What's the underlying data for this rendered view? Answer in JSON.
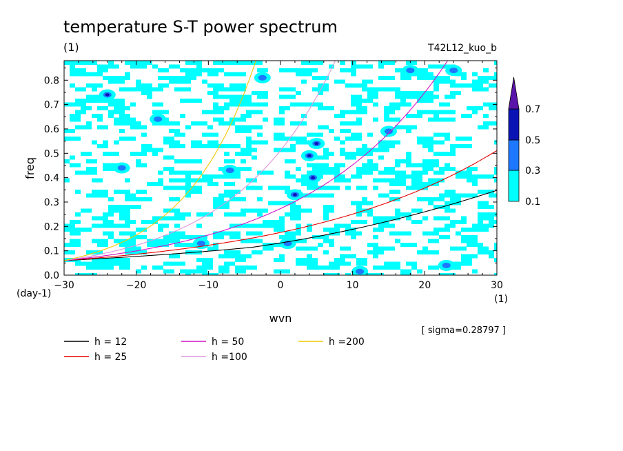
{
  "chart_data": {
    "type": "heatmap",
    "title": "temperature S-T power spectrum",
    "subtitle": "(1)",
    "run_label": "T42L12_kuo_b",
    "xlabel": "wvn",
    "x_unit": "(1)",
    "ylabel": "freq",
    "y_unit": "(day-1)",
    "xlim": [
      -30,
      30
    ],
    "ylim": [
      0,
      0.88
    ],
    "x_ticks": [
      -30,
      -20,
      -10,
      0,
      10,
      20,
      30
    ],
    "y_ticks": [
      0.0,
      0.1,
      0.2,
      0.3,
      0.4,
      0.5,
      0.6,
      0.7,
      0.8
    ],
    "x_tick_labels": [
      "−30",
      "−20",
      "−10",
      "0",
      "10",
      "20",
      "30"
    ],
    "y_tick_labels": [
      "0.0",
      "0.1",
      "0.2",
      "0.3",
      "0.4",
      "0.5",
      "0.6",
      "0.7",
      "0.8"
    ],
    "sigma_text": "[ sigma=0.28797 ]",
    "colorbar": {
      "levels": [
        "0.1",
        "0.3",
        "0.5",
        "0.7"
      ],
      "colors": [
        "#00ffff",
        "#1e78ff",
        "#0a14b4",
        "#5a14aa"
      ]
    },
    "dispersion_curves": [
      {
        "label": "h = 12",
        "h": 12,
        "color": "#000000"
      },
      {
        "label": "h = 25",
        "h": 25,
        "color": "#e60000"
      },
      {
        "label": "h = 50",
        "h": 50,
        "color": "#d214c8"
      },
      {
        "label": "h =100",
        "h": 100,
        "color": "#dc96dc"
      },
      {
        "label": "h =200",
        "h": 200,
        "color": "#f0c800"
      }
    ],
    "dark_spots": [
      {
        "x": -24,
        "y": 0.74,
        "level": 0.5
      },
      {
        "x": -17,
        "y": 0.64,
        "level": 0.3
      },
      {
        "x": -2.5,
        "y": 0.81,
        "level": 0.3
      },
      {
        "x": 2,
        "y": 0.33,
        "level": 0.5
      },
      {
        "x": 4,
        "y": 0.49,
        "level": 0.5
      },
      {
        "x": 4.5,
        "y": 0.4,
        "level": 0.5
      },
      {
        "x": 5,
        "y": 0.54,
        "level": 0.5
      },
      {
        "x": 18,
        "y": 0.84,
        "level": 0.3
      },
      {
        "x": 23,
        "y": 0.04,
        "level": 0.3
      },
      {
        "x": 11,
        "y": 0.015,
        "level": 0.3
      },
      {
        "x": -22,
        "y": 0.44,
        "level": 0.3
      },
      {
        "x": -7,
        "y": 0.43,
        "level": 0.3
      },
      {
        "x": -11,
        "y": 0.13,
        "level": 0.3
      },
      {
        "x": 15,
        "y": 0.59,
        "level": 0.3
      },
      {
        "x": 24,
        "y": 0.84,
        "level": 0.3
      },
      {
        "x": 1,
        "y": 0.13,
        "level": 0.3
      }
    ]
  }
}
